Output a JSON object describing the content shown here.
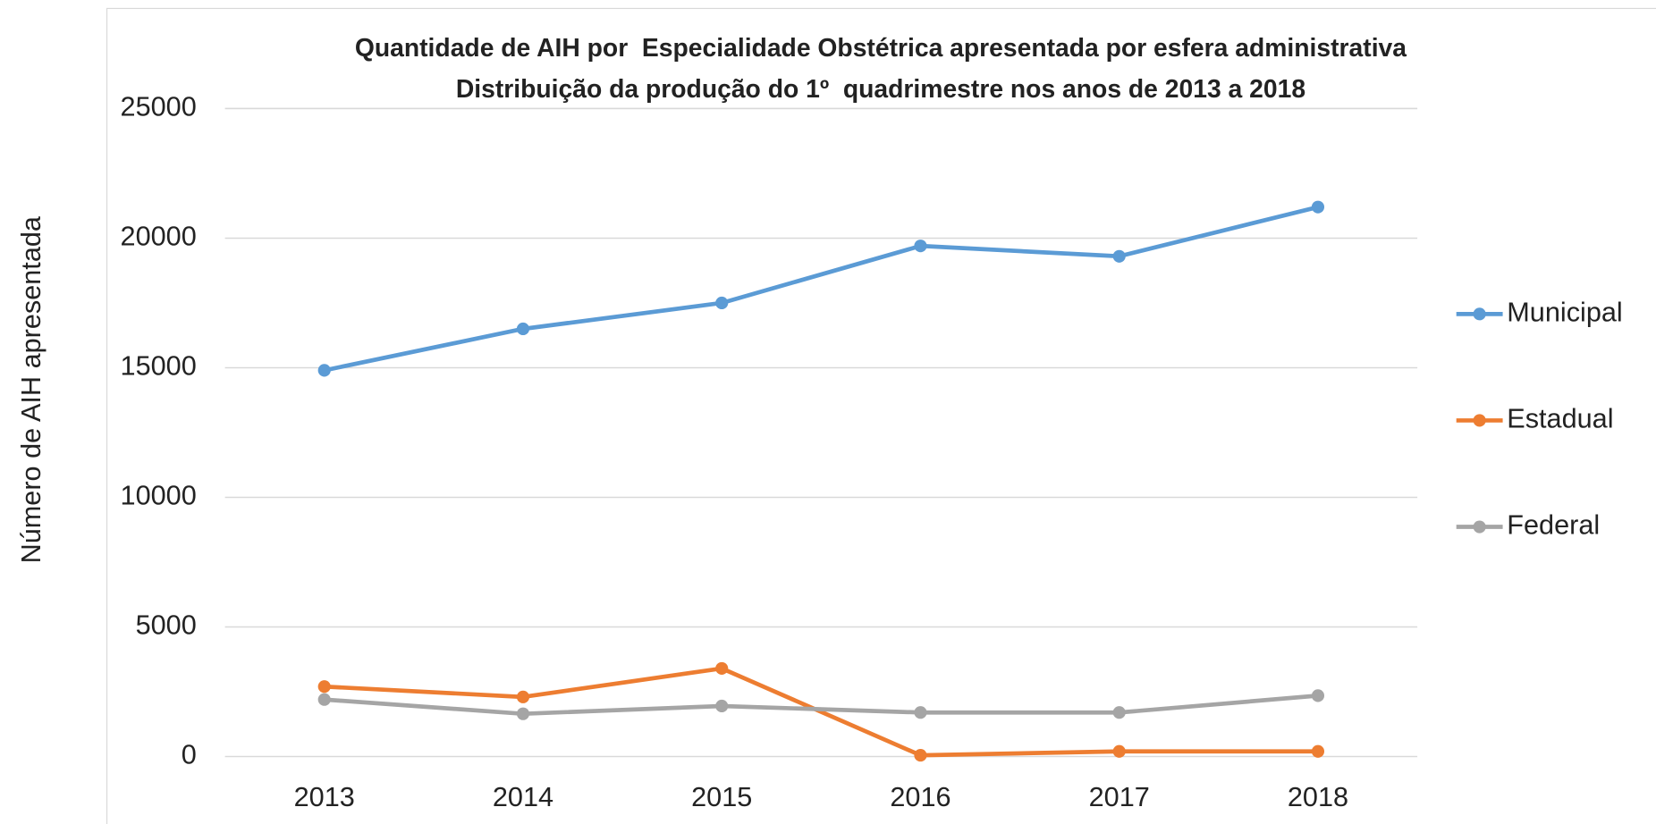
{
  "chart_data": {
    "type": "line",
    "title": "Quantidade de AIH por  Especialidade Obstétrica apresentada por esfera administrativa",
    "subtitle": "Distribuição da produção do 1º  quadrimestre nos anos de 2013 a 2018",
    "y_label": "Número de AIH apresentada",
    "categories": [
      "2013",
      "2014",
      "2015",
      "2016",
      "2017",
      "2018"
    ],
    "series": [
      {
        "name": "Municipal",
        "color": "#5b9bd5",
        "values": [
          14900,
          16500,
          17500,
          19700,
          19300,
          21200
        ]
      },
      {
        "name": "Estadual",
        "color": "#ed7d31",
        "values": [
          2700,
          2300,
          3400,
          50,
          200,
          200
        ]
      },
      {
        "name": "Federal",
        "color": "#a5a5a5",
        "values": [
          2200,
          1650,
          1950,
          1700,
          1700,
          2350
        ]
      }
    ],
    "ylim": [
      0,
      25000
    ],
    "yticks": [
      0,
      5000,
      10000,
      15000,
      20000,
      25000
    ],
    "grid": true,
    "legend": "right"
  }
}
